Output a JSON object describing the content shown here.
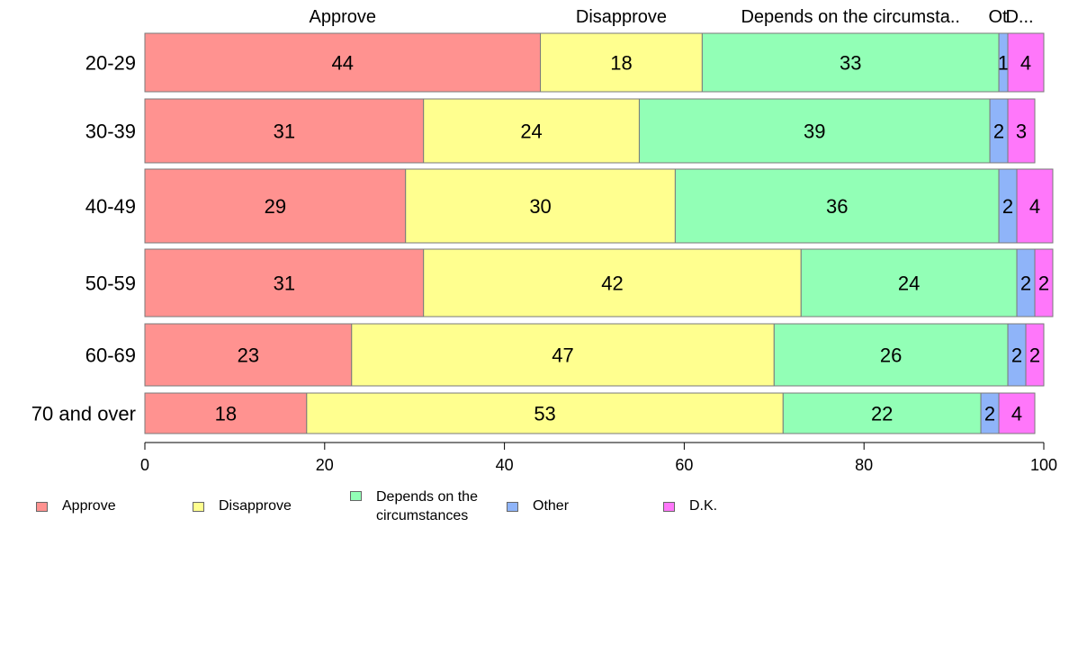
{
  "chart_data": {
    "type": "bar",
    "orientation": "horizontal",
    "stacked": true,
    "categories": [
      "20-29",
      "30-39",
      "40-49",
      "50-59",
      "60-69",
      "70 and over"
    ],
    "series": [
      {
        "name": "Approve",
        "values": [
          44,
          31,
          29,
          31,
          23,
          18
        ],
        "color": "#ff9290"
      },
      {
        "name": "Disapprove",
        "values": [
          18,
          24,
          30,
          42,
          47,
          53
        ],
        "color": "#ffff8f"
      },
      {
        "name": "Depends on the circumstances",
        "values": [
          33,
          39,
          36,
          24,
          26,
          22
        ],
        "color": "#92ffb6"
      },
      {
        "name": "Other",
        "values": [
          1,
          2,
          2,
          2,
          2,
          2
        ],
        "color": "#8fb4f9"
      },
      {
        "name": "D.K.",
        "values": [
          4,
          3,
          4,
          2,
          2,
          4
        ],
        "color": "#ff77fa"
      }
    ],
    "top_labels": [
      "Approve",
      "Disapprove",
      "Depends on the circumsta..",
      "Ot",
      "D..."
    ],
    "xlim": [
      0,
      100
    ],
    "xticks": [
      0,
      20,
      40,
      60,
      80,
      100
    ],
    "xlabel": "",
    "ylabel": "",
    "title": "",
    "grid": false,
    "legend": {
      "position": "bottom",
      "labels": [
        "Approve",
        "Disapprove",
        "Depends on the circumstances",
        "Other",
        "D.K."
      ]
    }
  }
}
